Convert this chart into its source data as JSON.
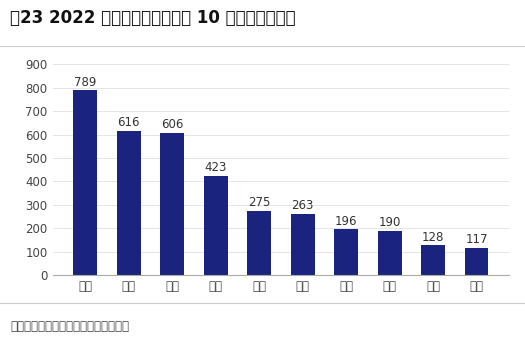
{
  "title": "图23 2022 年国内电解铝产量前 10 名省份（万吨）",
  "categories": [
    "山东",
    "新疆",
    "内蒙",
    "云南",
    "青海",
    "甘肃",
    "广西",
    "河南",
    "贵州",
    "宁夏"
  ],
  "values": [
    789,
    616,
    606,
    423,
    275,
    263,
    196,
    190,
    128,
    117
  ],
  "bar_color": "#1a237e",
  "yticks": [
    0,
    100,
    200,
    300,
    400,
    500,
    600,
    700,
    800,
    900
  ],
  "ylim": [
    0,
    940
  ],
  "footnote": "资料来源：百川盈孚，海通证券研究所",
  "bg_color": "#ffffff",
  "label_fontsize": 8.5,
  "title_fontsize": 12,
  "footnote_fontsize": 8.5,
  "tick_fontsize": 8.5
}
